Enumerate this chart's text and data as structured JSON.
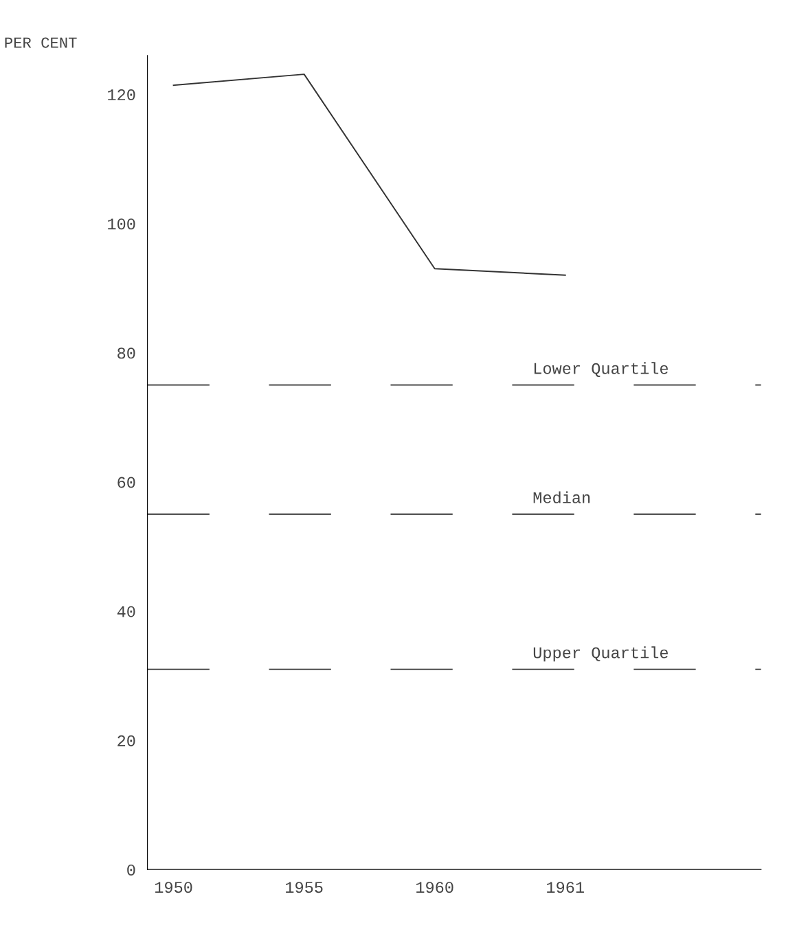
{
  "chart_data": {
    "type": "line",
    "ylabel": "PER CENT",
    "categories": [
      "1950",
      "1955",
      "1960",
      "1961"
    ],
    "series": [
      {
        "color": "#333333",
        "values": [
          121.4,
          123.1,
          93.0,
          92.0
        ]
      }
    ],
    "ylim": [
      0,
      126
    ],
    "yticks": [
      0,
      20,
      40,
      60,
      80,
      100,
      120
    ],
    "grid": false,
    "legend": false,
    "marker": "none",
    "line_style": "solid",
    "ref_lines": [
      {
        "axis": "y",
        "value": 75,
        "label": "Lower Quartile",
        "color": "#333333",
        "line_style": "dashed"
      },
      {
        "axis": "y",
        "value": 55,
        "label": "Median",
        "color": "#333333",
        "line_style": "dashed"
      },
      {
        "axis": "y",
        "value": 31,
        "label": "Upper Quartile",
        "color": "#333333",
        "line_style": "dashed"
      }
    ]
  }
}
